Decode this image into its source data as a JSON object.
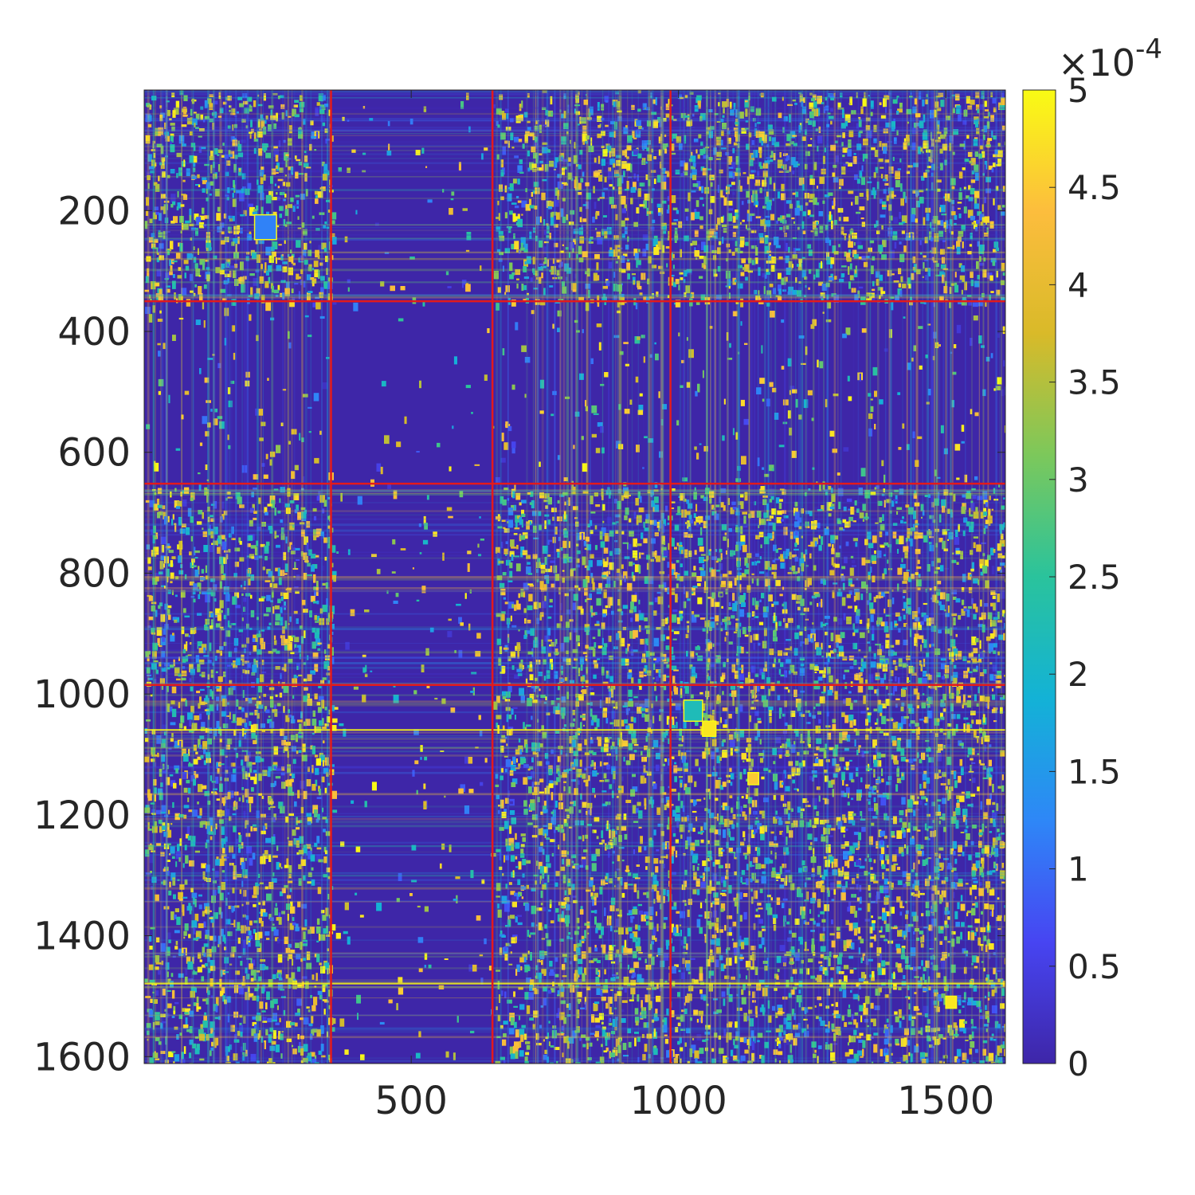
{
  "chart_data": {
    "type": "heatmap",
    "title": "",
    "xlabel": "",
    "ylabel": "",
    "x_range": [
      1,
      1611
    ],
    "y_range": [
      1,
      1611
    ],
    "y_direction": "reverse",
    "x_ticks": [
      500,
      1000,
      1500
    ],
    "x_tick_labels": [
      "500",
      "1000",
      "1500"
    ],
    "y_ticks": [
      200,
      400,
      600,
      800,
      1000,
      1200,
      1400,
      1600
    ],
    "y_tick_labels": [
      "200",
      "400",
      "600",
      "800",
      "1000",
      "1200",
      "1400",
      "1600"
    ],
    "colormap": "parula",
    "colormap_stops": [
      "#3e26a8",
      "#4745f2",
      "#2e87f7",
      "#13b2d6",
      "#2ac39c",
      "#7cc85b",
      "#d9ba29",
      "#fcbd3d",
      "#f9fb14"
    ],
    "color_range": [
      0,
      0.0005
    ],
    "colorbar": {
      "ticks": [
        0,
        0.5,
        1,
        1.5,
        2,
        2.5,
        3,
        3.5,
        4,
        4.5,
        5
      ],
      "tick_labels": [
        "0",
        "0.5",
        "1",
        "1.5",
        "2",
        "2.5",
        "3",
        "3.5",
        "4",
        "4.5",
        "5"
      ],
      "exponent_prefix": "×10",
      "exponent": "-4"
    },
    "background_value": 0,
    "block_boundaries": [
      350,
      652,
      985
    ],
    "boundary_color": "#e31a1c",
    "low_activity_bands": [
      [
        350,
        652
      ]
    ],
    "notable_blocks": [
      {
        "x": [
          207,
          248
        ],
        "y": [
          207,
          248
        ],
        "value": 0.00012
      },
      {
        "x": [
          1010,
          1045
        ],
        "y": [
          1010,
          1045
        ],
        "value": 0.00022
      },
      {
        "x": [
          1045,
          1070
        ],
        "y": [
          1045,
          1070
        ],
        "value": 0.00048
      },
      {
        "x": [
          1130,
          1150
        ],
        "y": [
          1130,
          1150
        ],
        "value": 0.00045
      },
      {
        "x": [
          1500,
          1520
        ],
        "y": [
          1500,
          1520
        ],
        "value": 0.00048
      }
    ],
    "bright_lines": [
      1058,
      1478
    ],
    "grid": false,
    "legend": "none"
  }
}
